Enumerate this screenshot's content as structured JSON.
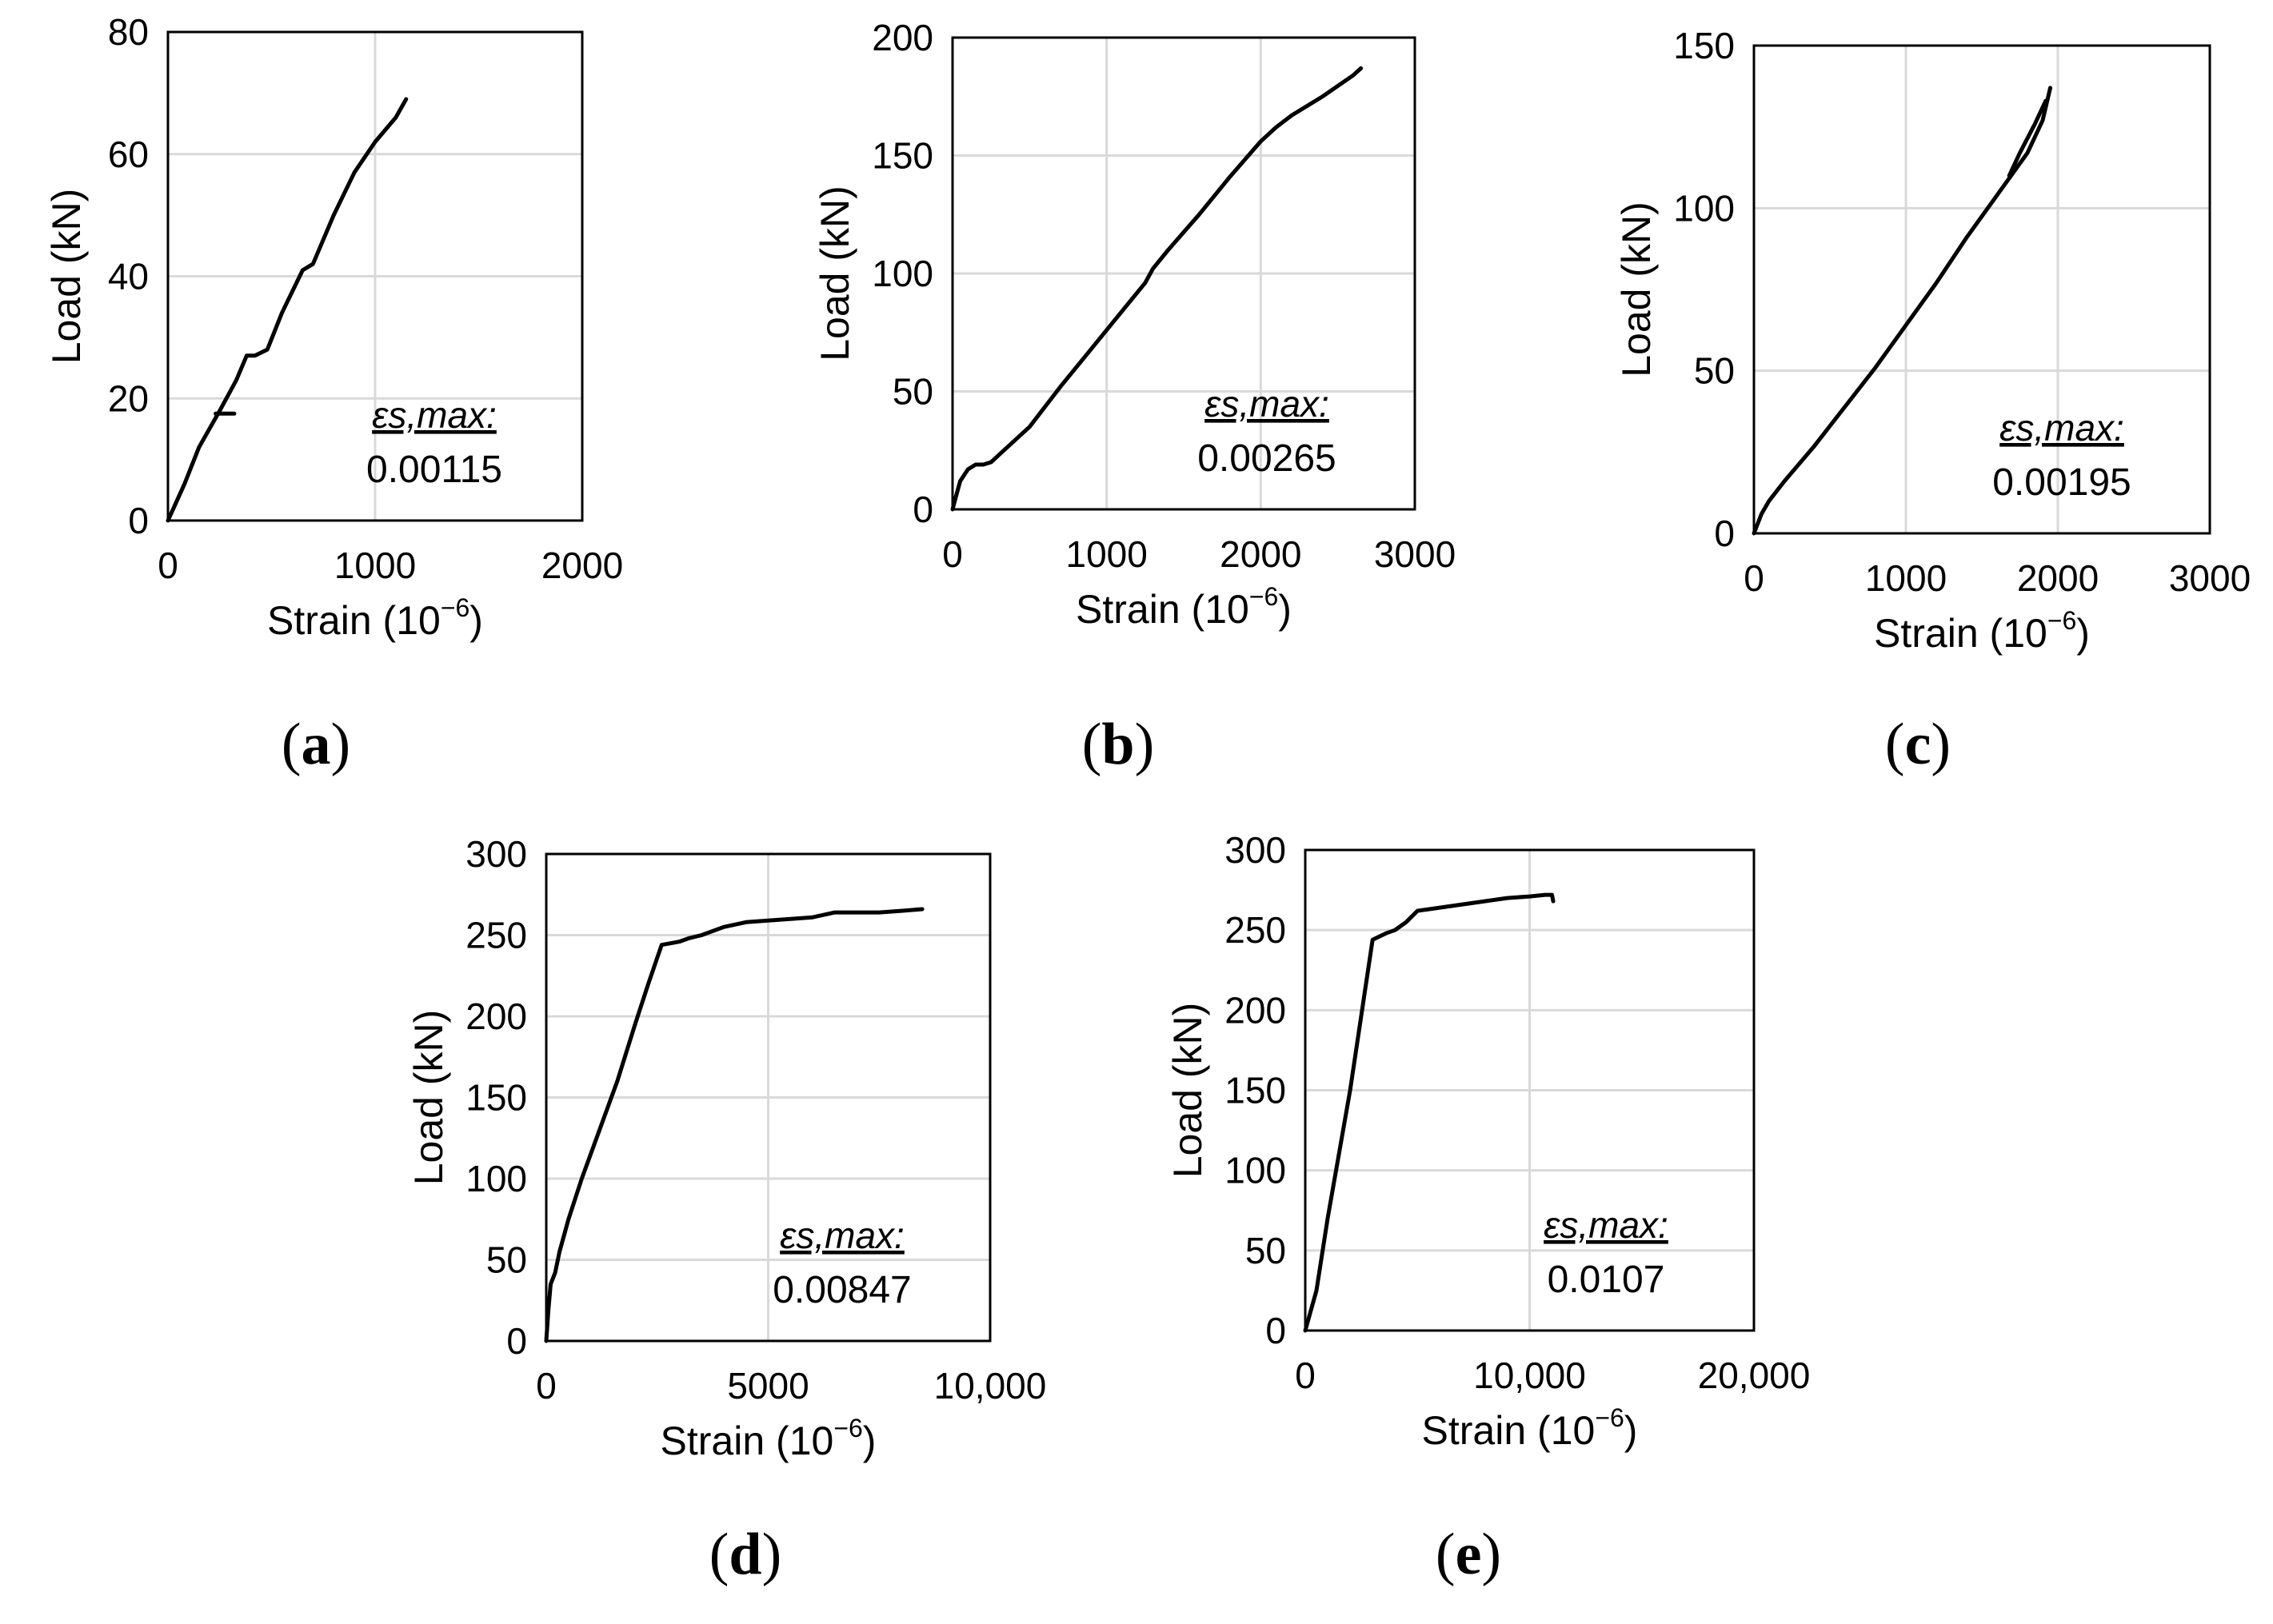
{
  "chart_data": [
    {
      "panel": "a",
      "panel_label": "a",
      "type": "line",
      "xlabel": "Strain (10",
      "xlabel_exp": "−6",
      "xlabel_close": ")",
      "ylabel": "Load (kN)",
      "xlim": [
        0,
        2000
      ],
      "ylim": [
        0,
        80
      ],
      "xticks": [
        0,
        1000,
        2000
      ],
      "xtick_labels": [
        "0",
        "1000",
        "2000"
      ],
      "yticks": [
        0,
        20,
        40,
        60,
        80
      ],
      "ytick_labels": [
        "0",
        "20",
        "40",
        "60",
        "80"
      ],
      "annotation_title": "εs,max:",
      "annotation_value": "0.00115",
      "series": [
        {
          "name": "main",
          "x": [
            0,
            80,
            150,
            250,
            330,
            380,
            420,
            480,
            550,
            650,
            700,
            800,
            900,
            1000,
            1100,
            1150
          ],
          "y": [
            0,
            6,
            12,
            18,
            23,
            27,
            27,
            28,
            34,
            41,
            42,
            50,
            57,
            62,
            66,
            69
          ]
        },
        {
          "name": "segment",
          "x": [
            230,
            320
          ],
          "y": [
            17.5,
            17.5
          ]
        }
      ]
    },
    {
      "panel": "b",
      "panel_label": "b",
      "type": "line",
      "xlabel": "Strain (10",
      "xlabel_exp": "−6",
      "xlabel_close": ")",
      "ylabel": "Load (kN)",
      "xlim": [
        0,
        3000
      ],
      "ylim": [
        0,
        200
      ],
      "xticks": [
        0,
        1000,
        2000,
        3000
      ],
      "xtick_labels": [
        "0",
        "1000",
        "2000",
        "3000"
      ],
      "yticks": [
        0,
        50,
        100,
        150,
        200
      ],
      "ytick_labels": [
        "0",
        "50",
        "100",
        "150",
        "200"
      ],
      "annotation_title": "εs,max:",
      "annotation_value": "0.00265",
      "series": [
        {
          "name": "main",
          "x": [
            0,
            20,
            50,
            100,
            150,
            200,
            250,
            300,
            500,
            700,
            900,
            1100,
            1250,
            1300,
            1400,
            1600,
            1800,
            2000,
            2100,
            2200,
            2400,
            2600,
            2650
          ],
          "y": [
            0,
            5,
            12,
            17,
            19,
            19,
            20,
            23,
            35,
            52,
            68,
            84,
            96,
            102,
            110,
            125,
            141,
            156,
            162,
            167,
            175,
            184,
            187
          ]
        }
      ]
    },
    {
      "panel": "c",
      "panel_label": "c",
      "type": "line",
      "xlabel": "Strain (10",
      "xlabel_exp": "−6",
      "xlabel_close": ")",
      "ylabel": "Load (kN)",
      "xlim": [
        0,
        3000
      ],
      "ylim": [
        0,
        150
      ],
      "xticks": [
        0,
        1000,
        2000,
        3000
      ],
      "xtick_labels": [
        "0",
        "1000",
        "2000",
        "3000"
      ],
      "yticks": [
        0,
        50,
        100,
        150
      ],
      "ytick_labels": [
        "0",
        "50",
        "100",
        "150"
      ],
      "annotation_title": "εs,max:",
      "annotation_value": "0.00195",
      "series": [
        {
          "name": "main",
          "x": [
            0,
            50,
            100,
            200,
            400,
            600,
            800,
            1000,
            1200,
            1400,
            1600,
            1800,
            1900,
            1950
          ],
          "y": [
            0,
            6,
            10,
            16,
            27,
            39,
            51,
            64,
            77,
            91,
            104,
            117,
            127,
            137
          ]
        },
        {
          "name": "unload",
          "x": [
            1680,
            1750,
            1850,
            1920
          ],
          "y": [
            110,
            117,
            126,
            133
          ]
        }
      ]
    },
    {
      "panel": "d",
      "panel_label": "d",
      "type": "line",
      "xlabel": "Strain (10",
      "xlabel_exp": "−6",
      "xlabel_close": ")",
      "ylabel": "Load (kN)",
      "xlim": [
        0,
        10000
      ],
      "ylim": [
        0,
        300
      ],
      "xticks": [
        0,
        5000,
        10000
      ],
      "xtick_labels": [
        "0",
        "5000",
        "10,000"
      ],
      "yticks": [
        0,
        50,
        100,
        150,
        200,
        250,
        300
      ],
      "ytick_labels": [
        "0",
        "50",
        "100",
        "150",
        "200",
        "250",
        "300"
      ],
      "annotation_title": "εs,max:",
      "annotation_value": "0.00847",
      "series": [
        {
          "name": "main",
          "x": [
            0,
            50,
            100,
            200,
            300,
            500,
            800,
            1200,
            1600,
            2000,
            2300,
            2600,
            2800,
            3000,
            3200,
            3500,
            4000,
            4500,
            5000,
            5500,
            6000,
            6500,
            7000,
            7500,
            8000,
            8470
          ],
          "y": [
            0,
            20,
            35,
            42,
            55,
            75,
            100,
            130,
            160,
            195,
            220,
            244,
            245,
            246,
            248,
            250,
            255,
            258,
            259,
            260,
            261,
            264,
            264,
            264,
            265,
            266
          ]
        }
      ]
    },
    {
      "panel": "e",
      "panel_label": "e",
      "type": "line",
      "xlabel": "Strain (10",
      "xlabel_exp": "−6",
      "xlabel_close": ")",
      "ylabel": "Load (kN)",
      "xlim": [
        0,
        20000
      ],
      "ylim": [
        0,
        300
      ],
      "xticks": [
        0,
        10000,
        20000
      ],
      "xtick_labels": [
        "0",
        "10,000",
        "20,000"
      ],
      "yticks": [
        0,
        50,
        100,
        150,
        200,
        250,
        300
      ],
      "ytick_labels": [
        "0",
        "50",
        "100",
        "150",
        "200",
        "250",
        "300"
      ],
      "annotation_title": "εs,max:",
      "annotation_value": "0.0107",
      "series": [
        {
          "name": "main",
          "x": [
            0,
            500,
            1000,
            2000,
            3000,
            3300,
            3600,
            4000,
            4500,
            5000,
            5500,
            6000,
            7000,
            8000,
            9000,
            10000,
            10700,
            11000,
            11050
          ],
          "y": [
            0,
            25,
            70,
            150,
            244,
            246,
            248,
            250,
            255,
            262,
            263,
            264,
            266,
            268,
            270,
            271,
            272,
            272,
            268
          ]
        }
      ]
    }
  ]
}
